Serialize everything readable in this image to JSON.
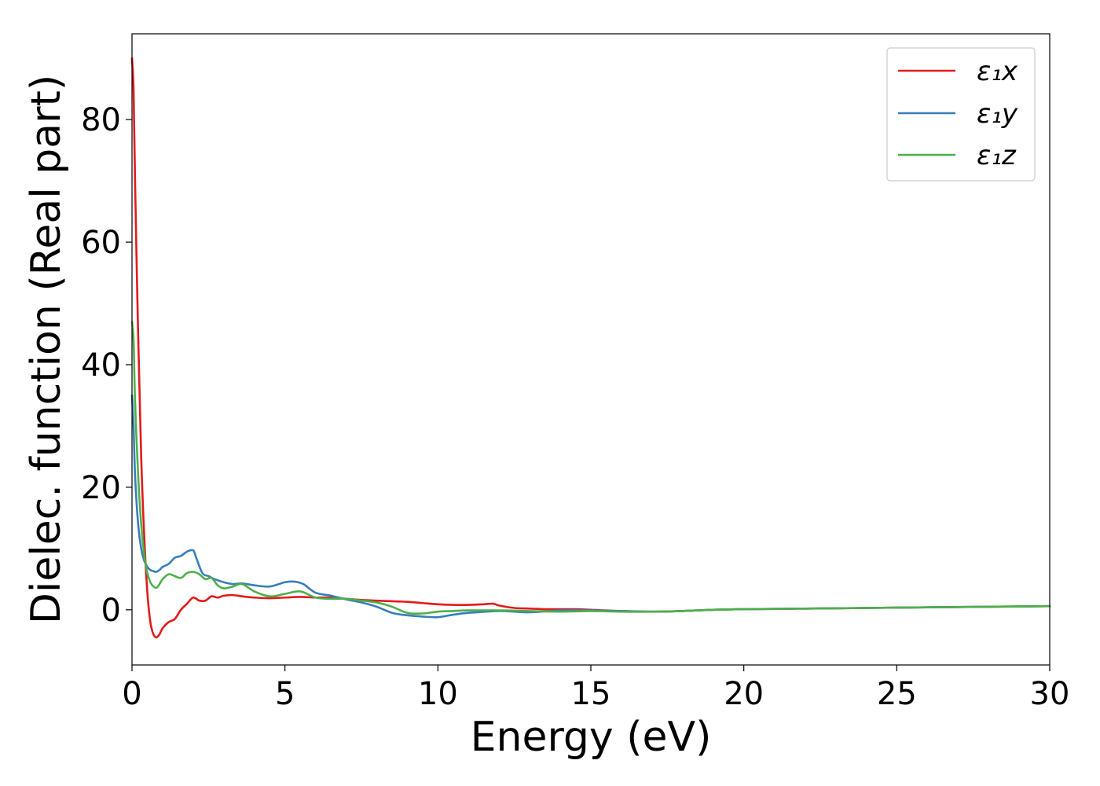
{
  "chart_data": {
    "type": "line",
    "title": "",
    "xlabel": "Energy (eV)",
    "ylabel": "Dielec. function (Real part)",
    "xlim": [
      0,
      30
    ],
    "ylim": [
      -9,
      94
    ],
    "xticks": [
      0,
      5,
      10,
      15,
      20,
      25,
      30
    ],
    "yticks": [
      0,
      20,
      40,
      60,
      80
    ],
    "grid": false,
    "legend_position": "top-right",
    "series": [
      {
        "name": "ε₁x",
        "color": "#e31a1c",
        "x": [
          0,
          0.05,
          0.1,
          0.2,
          0.3,
          0.4,
          0.5,
          0.6,
          0.7,
          0.8,
          0.9,
          1.0,
          1.2,
          1.4,
          1.6,
          1.8,
          2.0,
          2.2,
          2.4,
          2.6,
          2.8,
          3.0,
          3.3,
          3.6,
          4.0,
          4.5,
          5.0,
          5.5,
          6.0,
          6.5,
          7.0,
          7.5,
          8.0,
          8.5,
          9.0,
          9.5,
          10.0,
          10.5,
          11.0,
          11.5,
          11.8,
          12.0,
          12.5,
          13.0,
          13.5,
          14.0,
          14.5,
          15.0,
          16.0,
          17.0,
          18.0,
          19.0,
          20.0,
          22.0,
          24.0,
          26.0,
          28.0,
          30.0
        ],
        "y": [
          90,
          85,
          70,
          45,
          25,
          12,
          3,
          -2,
          -4,
          -4.5,
          -4,
          -3,
          -2,
          -1.5,
          0,
          1,
          2,
          1.5,
          1.5,
          2.2,
          2.0,
          2.3,
          2.4,
          2.2,
          2.0,
          1.9,
          2.0,
          2.1,
          2.0,
          2.0,
          1.8,
          1.6,
          1.5,
          1.4,
          1.3,
          1.1,
          0.9,
          0.8,
          0.8,
          0.9,
          1.0,
          0.7,
          0.3,
          0.2,
          0.1,
          0.1,
          0.1,
          0.0,
          -0.2,
          -0.3,
          -0.2,
          0.0,
          0.1,
          0.2,
          0.3,
          0.4,
          0.5,
          0.6
        ]
      },
      {
        "name": "ε₁y",
        "color": "#377eb8",
        "x": [
          0,
          0.05,
          0.1,
          0.2,
          0.3,
          0.4,
          0.5,
          0.6,
          0.7,
          0.8,
          0.9,
          1.0,
          1.2,
          1.4,
          1.6,
          1.8,
          2.0,
          2.1,
          2.3,
          2.5,
          2.7,
          3.0,
          3.3,
          3.6,
          4.0,
          4.5,
          5.0,
          5.3,
          5.6,
          6.0,
          6.5,
          7.0,
          7.5,
          8.0,
          8.5,
          9.0,
          9.5,
          10.0,
          10.5,
          11.0,
          12.0,
          13.0,
          14.0,
          15.0,
          16.0,
          17.0,
          18.0,
          19.0,
          20.0,
          22.0,
          24.0,
          26.0,
          28.0,
          30.0
        ],
        "y": [
          35,
          30,
          22,
          14,
          10,
          8,
          7,
          6.5,
          6.3,
          6.2,
          6.5,
          7.0,
          7.5,
          8.5,
          8.8,
          9.5,
          9.7,
          8.5,
          6.0,
          5.5,
          5.0,
          4.5,
          4.2,
          4.3,
          4.0,
          3.8,
          4.5,
          4.6,
          4.2,
          2.8,
          2.3,
          1.7,
          1.2,
          0.5,
          -0.5,
          -0.9,
          -1.1,
          -1.2,
          -0.8,
          -0.5,
          -0.2,
          -0.4,
          -0.1,
          -0.1,
          -0.2,
          -0.3,
          -0.2,
          0.0,
          0.1,
          0.2,
          0.3,
          0.4,
          0.5,
          0.6
        ]
      },
      {
        "name": "ε₁z",
        "color": "#4daf4a",
        "x": [
          0,
          0.05,
          0.1,
          0.2,
          0.3,
          0.4,
          0.5,
          0.6,
          0.7,
          0.8,
          0.9,
          1.0,
          1.2,
          1.4,
          1.6,
          1.8,
          2.0,
          2.2,
          2.4,
          2.6,
          2.8,
          3.0,
          3.3,
          3.6,
          4.0,
          4.5,
          5.0,
          5.5,
          6.0,
          6.5,
          7.0,
          7.5,
          8.0,
          8.5,
          9.0,
          9.5,
          10.0,
          10.5,
          11.0,
          12.0,
          13.0,
          14.0,
          15.0,
          16.0,
          17.0,
          18.0,
          19.0,
          20.0,
          22.0,
          24.0,
          26.0,
          28.0,
          30.0
        ],
        "y": [
          47,
          44,
          34,
          22,
          14,
          9,
          6,
          4.5,
          3.8,
          3.6,
          4.2,
          5.0,
          5.8,
          5.5,
          5.2,
          6.0,
          6.2,
          5.8,
          5.0,
          5.2,
          4.0,
          3.5,
          3.8,
          4.2,
          3.0,
          2.2,
          2.6,
          3.0,
          2.0,
          1.8,
          1.8,
          1.5,
          1.2,
          0.5,
          -0.5,
          -0.6,
          -0.3,
          -0.2,
          -0.1,
          -0.1,
          -0.2,
          -0.3,
          -0.2,
          -0.3,
          -0.3,
          -0.2,
          0.0,
          0.1,
          0.2,
          0.3,
          0.4,
          0.5,
          0.6
        ]
      }
    ]
  }
}
